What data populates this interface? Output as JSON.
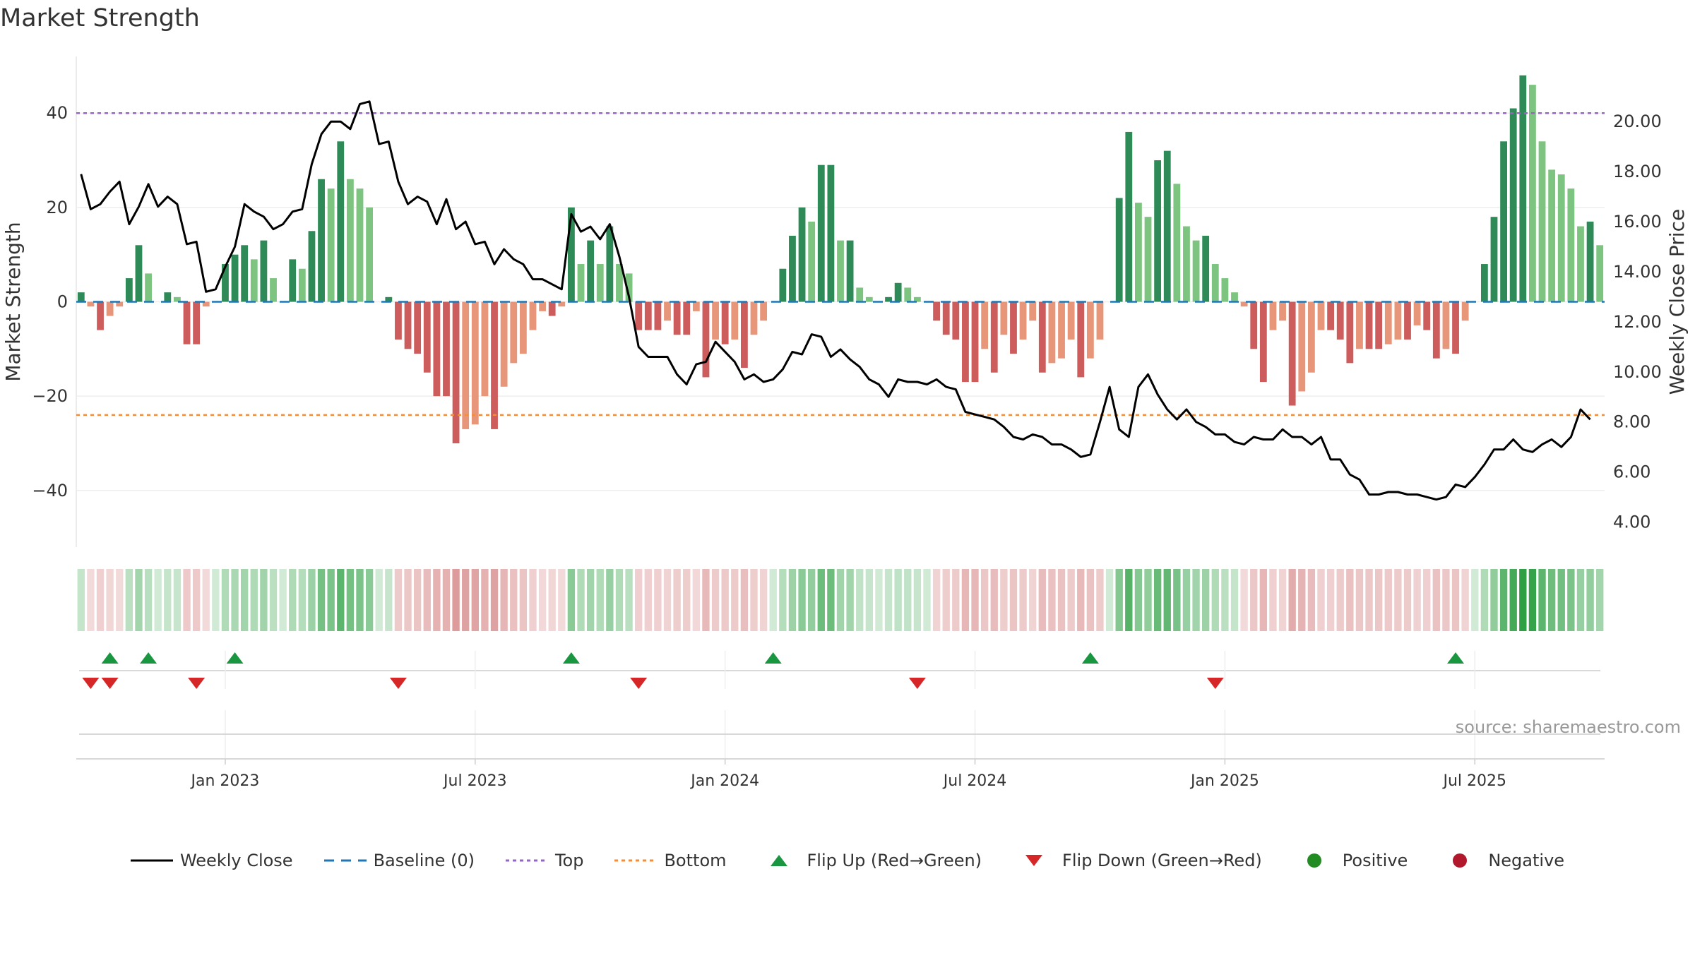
{
  "chart_data": {
    "type": "bar",
    "title": "Market Strength",
    "ylabel": "Market Strength",
    "y2label": "Weekly Close Price",
    "ylim": [
      -52,
      52
    ],
    "y2lim": [
      3.0,
      22.6
    ],
    "yticks": [
      "40",
      "20",
      "0",
      "−20",
      "−40"
    ],
    "y2ticks": [
      "20.00",
      "18.00",
      "16.00",
      "14.00",
      "12.00",
      "10.00",
      "8.00",
      "6.00",
      "4.00"
    ],
    "xticks": [
      {
        "label": "Jan 2023",
        "index": 15
      },
      {
        "label": "Jul 2023",
        "index": 41
      },
      {
        "label": "Jan 2024",
        "index": 67
      },
      {
        "label": "Jul 2024",
        "index": 93
      },
      {
        "label": "Jan 2025",
        "index": 119
      },
      {
        "label": "Jul 2025",
        "index": 145
      }
    ],
    "levels": {
      "top": 40,
      "bottom": -24,
      "baseline": 0
    },
    "series": [
      {
        "name": "Market Strength",
        "values": [
          2,
          -1,
          -6,
          -3,
          -1,
          5,
          12,
          6,
          0,
          2,
          1,
          -9,
          -9,
          -1,
          0,
          8,
          10,
          12,
          9,
          13,
          5,
          0,
          9,
          7,
          15,
          26,
          24,
          34,
          26,
          24,
          20,
          0,
          1,
          -8,
          -10,
          -11,
          -15,
          -20,
          -20,
          -30,
          -27,
          -26,
          -20,
          -27,
          -18,
          -13,
          -11,
          -6,
          -2,
          -3,
          -1,
          20,
          8,
          13,
          8,
          16,
          8,
          6,
          -6,
          -6,
          -6,
          -4,
          -7,
          -7,
          -2,
          -16,
          -8,
          -9,
          -8,
          -14,
          -7,
          -4,
          0,
          7,
          14,
          20,
          17,
          29,
          29,
          13,
          13,
          3,
          1,
          0,
          1,
          4,
          3,
          1,
          0,
          -4,
          -7,
          -8,
          -17,
          -17,
          -10,
          -15,
          -7,
          -11,
          -8,
          -4,
          -15,
          -13,
          -12,
          -8,
          -16,
          -12,
          -8,
          0,
          22,
          36,
          21,
          18,
          30,
          32,
          25,
          16,
          13,
          14,
          8,
          5,
          2,
          -1,
          -10,
          -17,
          -6,
          -4,
          -22,
          -19,
          -15,
          -6,
          -6,
          -8,
          -13,
          -10,
          -10,
          -10,
          -9,
          -8,
          -8,
          -5,
          -6,
          -12,
          -10,
          -11,
          -4,
          0,
          8,
          18,
          34,
          41,
          48,
          46,
          34,
          28,
          27,
          24,
          16,
          17,
          12
        ]
      },
      {
        "name": "Weekly Close",
        "values": [
          17.9,
          16.5,
          16.7,
          17.2,
          17.6,
          15.9,
          16.6,
          17.5,
          16.6,
          17.0,
          16.7,
          15.1,
          15.2,
          13.2,
          13.3,
          14.2,
          15.0,
          16.7,
          16.4,
          16.2,
          15.7,
          15.9,
          16.4,
          16.5,
          18.3,
          19.5,
          20.0,
          20.0,
          19.7,
          20.7,
          20.8,
          19.1,
          19.2,
          17.6,
          16.7,
          17.0,
          16.8,
          15.9,
          16.9,
          15.7,
          16.0,
          15.1,
          15.2,
          14.3,
          14.9,
          14.5,
          14.3,
          13.7,
          13.7,
          13.5,
          13.3,
          16.3,
          15.6,
          15.8,
          15.3,
          15.9,
          14.6,
          13.0,
          11.0,
          10.6,
          10.6,
          10.6,
          9.9,
          9.5,
          10.3,
          10.4,
          11.2,
          10.8,
          10.4,
          9.7,
          9.9,
          9.6,
          9.7,
          10.1,
          10.8,
          10.7,
          11.5,
          11.4,
          10.6,
          10.9,
          10.5,
          10.2,
          9.7,
          9.5,
          9.0,
          9.7,
          9.6,
          9.6,
          9.5,
          9.7,
          9.4,
          9.3,
          8.4,
          8.3,
          8.2,
          8.1,
          7.8,
          7.4,
          7.3,
          7.5,
          7.4,
          7.1,
          7.1,
          6.9,
          6.6,
          6.7,
          8.0,
          9.4,
          7.7,
          7.4,
          9.4,
          9.9,
          9.1,
          8.5,
          8.1,
          8.5,
          8.0,
          7.8,
          7.5,
          7.5,
          7.2,
          7.1,
          7.4,
          7.3,
          7.3,
          7.7,
          7.4,
          7.4,
          7.1,
          7.4,
          6.5,
          6.5,
          5.9,
          5.7,
          5.1,
          5.1,
          5.2,
          5.2,
          5.1,
          5.1,
          5.0,
          4.9,
          5.0,
          5.5,
          5.4,
          5.8,
          6.3,
          6.9,
          6.9,
          7.3,
          6.9,
          6.8,
          7.1,
          7.3,
          7.0,
          7.4,
          8.5,
          8.1
        ]
      }
    ],
    "flip_up_indices": [
      3,
      7,
      16,
      51,
      72,
      105,
      143
    ],
    "flip_down_indices": [
      1,
      3,
      12,
      33,
      58,
      87,
      118
    ],
    "legend": [
      {
        "label": "Weekly Close",
        "kind": "line",
        "color": "#000000"
      },
      {
        "label": "Baseline (0)",
        "kind": "dash",
        "color": "#1f77b4"
      },
      {
        "label": "Top",
        "kind": "dot",
        "color": "#9467bd"
      },
      {
        "label": "Bottom",
        "kind": "dot",
        "color": "#f28e3b"
      },
      {
        "label": "Flip Up (Red→Green)",
        "kind": "tri-up",
        "color": "#1a9641"
      },
      {
        "label": "Flip Down (Green→Red)",
        "kind": "tri-down",
        "color": "#d62728"
      },
      {
        "label": "Positive",
        "kind": "circle",
        "color": "#228b22"
      },
      {
        "label": "Negative",
        "kind": "circle",
        "color": "#b2182b"
      }
    ],
    "legend_position": "bottom-center",
    "source": "source: sharemaestro.com"
  }
}
